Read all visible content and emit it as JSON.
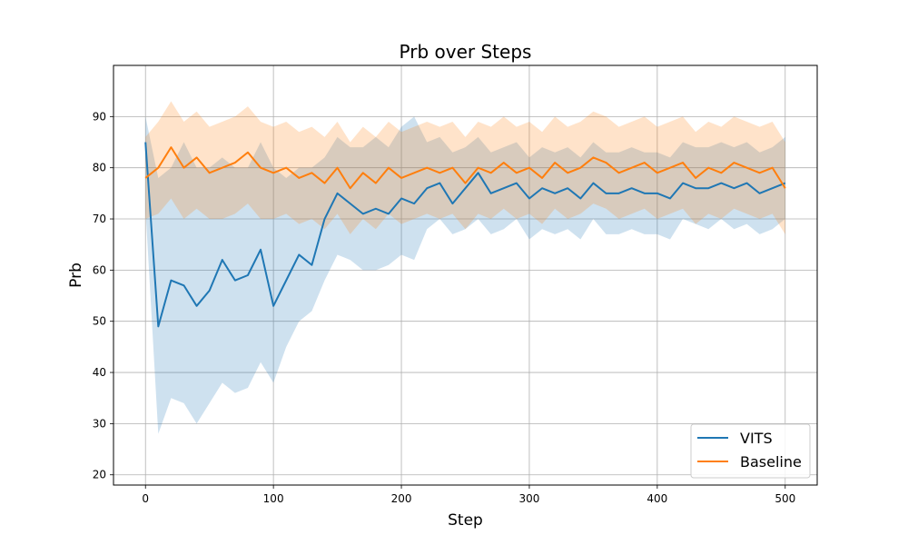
{
  "chart_data": {
    "type": "line",
    "title": "Prb over Steps",
    "xlabel": "Step",
    "ylabel": "Prb",
    "xlim": [
      -25,
      525
    ],
    "ylim": [
      18,
      100
    ],
    "x_ticks": [
      0,
      100,
      200,
      300,
      400,
      500
    ],
    "y_ticks": [
      20,
      30,
      40,
      50,
      60,
      70,
      80,
      90
    ],
    "grid": true,
    "legend_position": "bottom-right",
    "x": [
      0,
      10,
      20,
      30,
      40,
      50,
      60,
      70,
      80,
      90,
      100,
      110,
      120,
      130,
      140,
      150,
      160,
      170,
      180,
      190,
      200,
      210,
      220,
      230,
      240,
      250,
      260,
      270,
      280,
      290,
      300,
      310,
      320,
      330,
      340,
      350,
      360,
      370,
      380,
      390,
      400,
      410,
      420,
      430,
      440,
      450,
      460,
      470,
      480,
      490,
      500
    ],
    "series": [
      {
        "name": "VITS",
        "color": "#1f77b4",
        "values": [
          85,
          49,
          58,
          57,
          53,
          56,
          62,
          58,
          59,
          64,
          53,
          58,
          63,
          61,
          70,
          75,
          73,
          71,
          72,
          71,
          74,
          73,
          76,
          77,
          73,
          76,
          79,
          75,
          76,
          77,
          74,
          76,
          75,
          76,
          74,
          77,
          75,
          75,
          76,
          75,
          75,
          74,
          77,
          76,
          76,
          77,
          76,
          77,
          75,
          76,
          77
        ],
        "lower": [
          72,
          28,
          35,
          34,
          30,
          34,
          38,
          36,
          37,
          42,
          38,
          45,
          50,
          52,
          58,
          63,
          62,
          60,
          60,
          61,
          63,
          62,
          68,
          70,
          67,
          68,
          70,
          67,
          68,
          70,
          66,
          68,
          67,
          68,
          66,
          70,
          67,
          67,
          68,
          67,
          67,
          66,
          70,
          69,
          68,
          70,
          68,
          69,
          67,
          68,
          70
        ],
        "upper": [
          90,
          78,
          80,
          85,
          80,
          80,
          82,
          80,
          80,
          85,
          80,
          78,
          80,
          80,
          82,
          86,
          84,
          84,
          86,
          84,
          88,
          90,
          85,
          86,
          83,
          84,
          86,
          83,
          84,
          85,
          82,
          84,
          83,
          84,
          82,
          85,
          83,
          83,
          84,
          83,
          83,
          82,
          85,
          84,
          84,
          85,
          84,
          85,
          83,
          84,
          86
        ]
      },
      {
        "name": "Baseline",
        "color": "#ff7f0e",
        "values": [
          78,
          80,
          84,
          80,
          82,
          79,
          80,
          81,
          83,
          80,
          79,
          80,
          78,
          79,
          77,
          80,
          76,
          79,
          77,
          80,
          78,
          79,
          80,
          79,
          80,
          77,
          80,
          79,
          81,
          79,
          80,
          78,
          81,
          79,
          80,
          82,
          81,
          79,
          80,
          81,
          79,
          80,
          81,
          78,
          80,
          79,
          81,
          80,
          79,
          80,
          76
        ],
        "lower": [
          70,
          71,
          74,
          70,
          72,
          70,
          70,
          71,
          73,
          70,
          70,
          71,
          69,
          70,
          68,
          71,
          67,
          70,
          68,
          71,
          69,
          70,
          71,
          70,
          71,
          68,
          71,
          70,
          72,
          70,
          71,
          69,
          72,
          70,
          71,
          73,
          72,
          70,
          71,
          72,
          70,
          71,
          72,
          69,
          71,
          70,
          72,
          71,
          70,
          71,
          67
        ],
        "upper": [
          86,
          89,
          93,
          89,
          91,
          88,
          89,
          90,
          92,
          89,
          88,
          89,
          87,
          88,
          86,
          89,
          85,
          88,
          86,
          89,
          87,
          88,
          89,
          88,
          89,
          86,
          89,
          88,
          90,
          88,
          89,
          87,
          90,
          88,
          89,
          91,
          90,
          88,
          89,
          90,
          88,
          89,
          90,
          87,
          89,
          88,
          90,
          89,
          88,
          89,
          85
        ]
      }
    ]
  }
}
